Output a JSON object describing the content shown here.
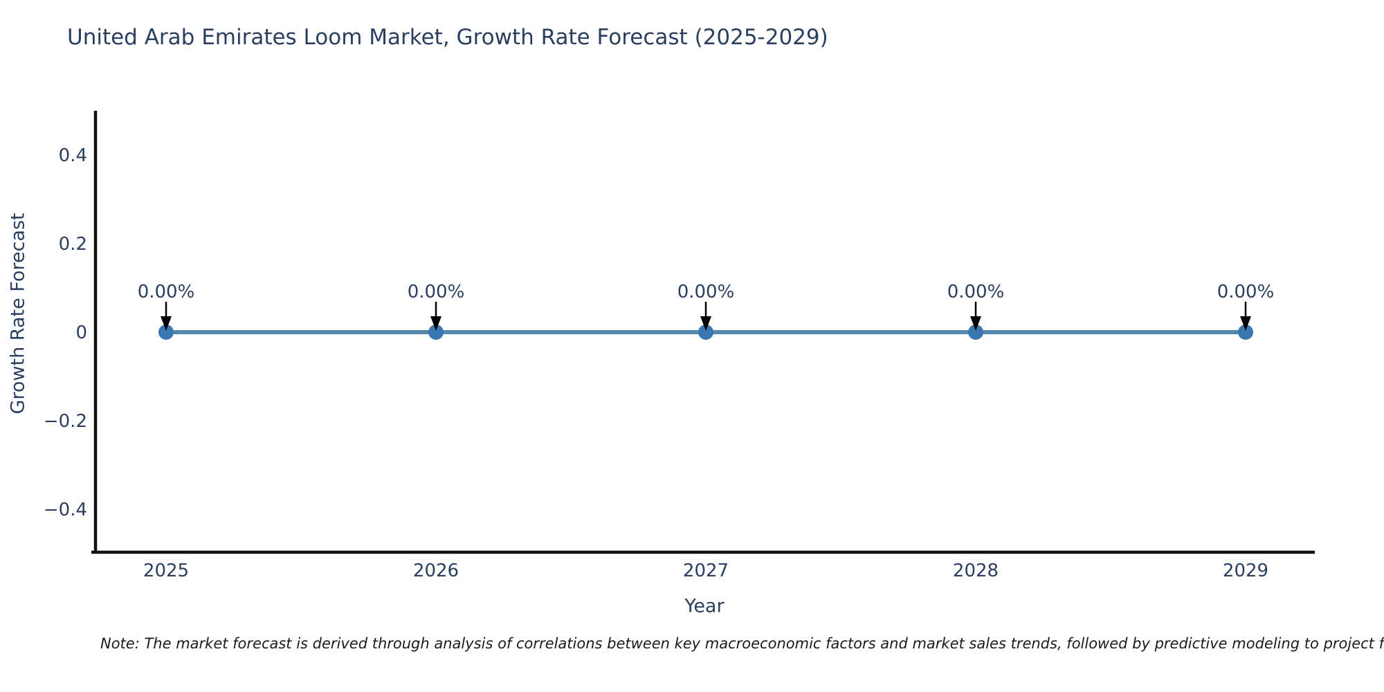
{
  "page": {
    "background": "#ffffff"
  },
  "chart": {
    "note": "Note: The market forecast is derived through analysis of correlations between key macroeconomic factors and market sales trends, followed by predictive modeling to project future sa"
  },
  "chart_data": {
    "type": "line",
    "title": "United Arab Emirates Loom Market, Growth Rate Forecast (2025-2029)",
    "xlabel": "Year",
    "ylabel": "Growth Rate Forecast",
    "x": [
      2025,
      2026,
      2027,
      2028,
      2029
    ],
    "series": [
      {
        "name": "Growth Rate Forecast",
        "values": [
          0,
          0,
          0,
          0,
          0
        ]
      }
    ],
    "point_labels": [
      "0.00%",
      "0.00%",
      "0.00%",
      "0.00%",
      "0.00%"
    ],
    "yticks": [
      0.4,
      0.2,
      0,
      -0.2,
      -0.4
    ],
    "ylim": [
      -0.5,
      0.5
    ],
    "grid": false,
    "legend": "none",
    "colors": {
      "line": "#5588ad",
      "marker": "#3a76b0",
      "text": "#2a3f5f",
      "axis": "#111111",
      "arrow": "#000000",
      "note_text": "#1a1a1a"
    }
  }
}
